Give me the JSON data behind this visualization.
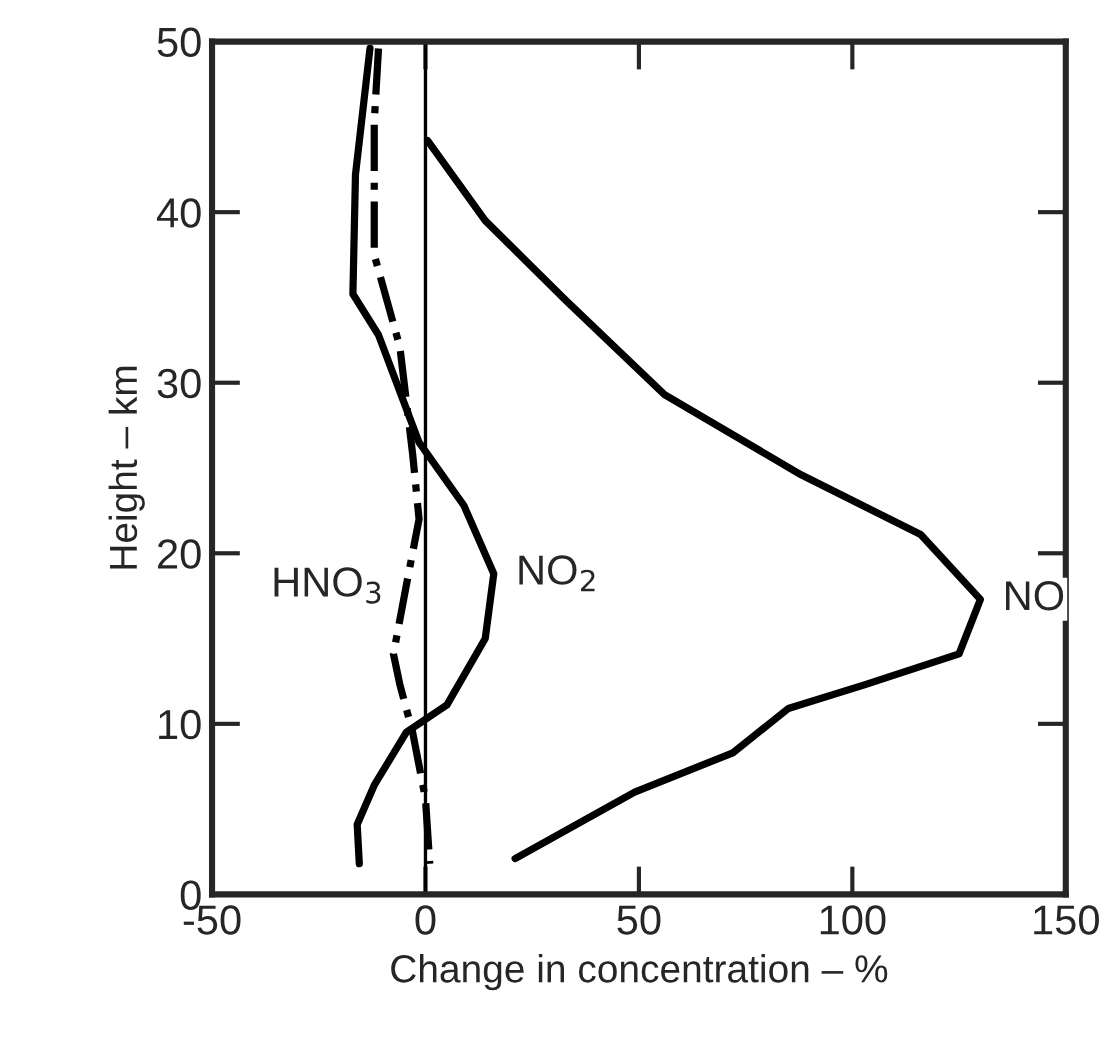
{
  "chart_data": {
    "type": "line",
    "xlabel": "Change in concentration – %",
    "ylabel": "Height – km",
    "xlim": [
      -50,
      150
    ],
    "xticks": [
      -50,
      0,
      50,
      100,
      150
    ],
    "ylim": [
      0,
      50
    ],
    "yticks": [
      0,
      10,
      20,
      30,
      40,
      50
    ],
    "grid": false,
    "marker": "none",
    "series": [
      {
        "name": "NO",
        "color": "#000000",
        "line_style": "solid",
        "x": [
          0.5,
          14,
          33,
          56,
          88,
          116,
          130,
          125,
          103,
          85,
          72,
          49,
          21
        ],
        "values": [
          44.2,
          39.5,
          34.8,
          29.3,
          24.6,
          21.1,
          17.3,
          14.1,
          12.3,
          10.9,
          8.3,
          6.0,
          2.1
        ]
      },
      {
        "name": "NO$_{2}$",
        "color": "#000000",
        "line_style": "solid",
        "x": [
          -13,
          -16.4,
          -17,
          -11,
          -1.5,
          9,
          16,
          14,
          5,
          -4.5,
          -12,
          -16,
          -15.5
        ],
        "values": [
          49.6,
          42.2,
          35.2,
          32.8,
          26.5,
          22.8,
          18.8,
          15,
          11.1,
          9.5,
          6.4,
          4.1,
          1.8
        ]
      },
      {
        "name": "HNO$_{3}$",
        "color": "#000000",
        "line_style": "dashdot",
        "x": [
          -11,
          -12,
          -12,
          -6,
          -3,
          -1.5,
          -4.5,
          -7.5,
          -6,
          -3,
          0,
          1
        ],
        "values": [
          49.6,
          45.3,
          37.5,
          32.1,
          25.8,
          22,
          18.1,
          14.1,
          12.3,
          9.5,
          5.6,
          1.8
        ]
      }
    ],
    "ref_lines": [
      {
        "axis": "x",
        "value": 0,
        "color": "#000000",
        "line_style": "solid"
      }
    ]
  }
}
